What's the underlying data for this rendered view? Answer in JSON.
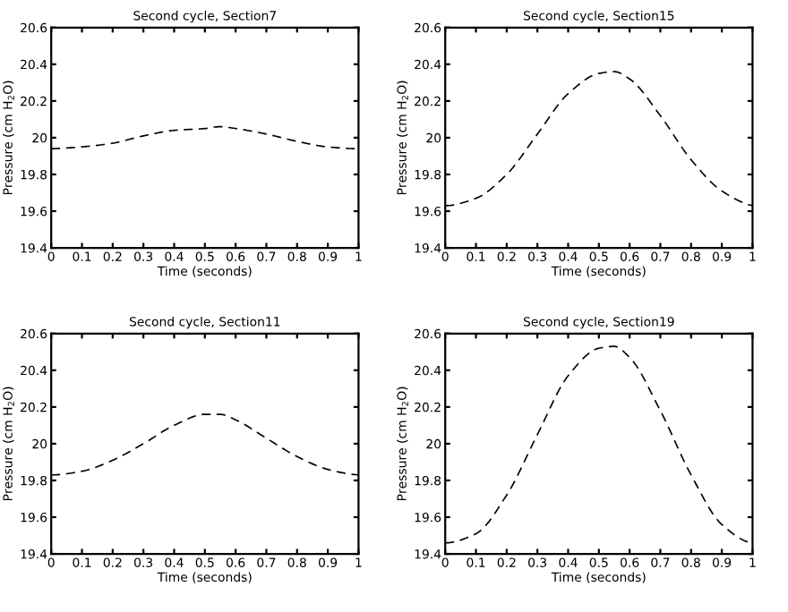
{
  "chart_data": [
    {
      "type": "line",
      "title": "Second cycle, Section7",
      "xlabel": "Time (seconds)",
      "ylabel": "Pressure (cm H$_{2}$O)",
      "x": [
        0,
        0.1,
        0.2,
        0.3,
        0.4,
        0.5,
        0.55,
        0.6,
        0.7,
        0.8,
        0.9,
        1
      ],
      "series": [
        {
          "color": "#000000",
          "values": [
            19.94,
            19.95,
            19.97,
            20.01,
            20.04,
            20.05,
            20.06,
            20.05,
            20.02,
            19.98,
            19.95,
            19.94
          ]
        }
      ],
      "xlim": [
        0,
        1
      ],
      "ylim": [
        19.4,
        20.6
      ],
      "xticks": [
        0,
        0.1,
        0.2,
        0.3,
        0.4,
        0.5,
        0.6,
        0.7,
        0.8,
        0.9,
        1
      ],
      "yticks": [
        19.4,
        19.6,
        19.8,
        20,
        20.2,
        20.4,
        20.6
      ],
      "line_style": "dashed",
      "marker": "none",
      "grid": false
    },
    {
      "type": "line",
      "title": "Second cycle, Section15",
      "xlabel": "Time (seconds)",
      "ylabel": "Pressure (cm H$_{2}$O)",
      "x": [
        0,
        0.1,
        0.2,
        0.3,
        0.4,
        0.5,
        0.55,
        0.6,
        0.7,
        0.8,
        0.9,
        1
      ],
      "series": [
        {
          "color": "#000000",
          "values": [
            19.63,
            19.67,
            19.8,
            20.02,
            20.24,
            20.35,
            20.36,
            20.32,
            20.12,
            19.88,
            19.71,
            19.63
          ]
        }
      ],
      "xlim": [
        0,
        1
      ],
      "ylim": [
        19.4,
        20.6
      ],
      "xticks": [
        0,
        0.1,
        0.2,
        0.3,
        0.4,
        0.5,
        0.6,
        0.7,
        0.8,
        0.9,
        1
      ],
      "yticks": [
        19.4,
        19.6,
        19.8,
        20,
        20.2,
        20.4,
        20.6
      ],
      "line_style": "dashed",
      "marker": "none",
      "grid": false
    },
    {
      "type": "line",
      "title": "Second cycle, Section11",
      "xlabel": "Time (seconds)",
      "ylabel": "Pressure (cm H$_{2}$O)",
      "x": [
        0,
        0.1,
        0.2,
        0.3,
        0.4,
        0.5,
        0.55,
        0.6,
        0.7,
        0.8,
        0.9,
        1
      ],
      "series": [
        {
          "color": "#000000",
          "values": [
            19.83,
            19.85,
            19.91,
            20.0,
            20.1,
            20.16,
            20.16,
            20.13,
            20.03,
            19.93,
            19.86,
            19.83
          ]
        }
      ],
      "xlim": [
        0,
        1
      ],
      "ylim": [
        19.4,
        20.6
      ],
      "xticks": [
        0,
        0.1,
        0.2,
        0.3,
        0.4,
        0.5,
        0.6,
        0.7,
        0.8,
        0.9,
        1
      ],
      "yticks": [
        19.4,
        19.6,
        19.8,
        20,
        20.2,
        20.4,
        20.6
      ],
      "line_style": "dashed",
      "marker": "none",
      "grid": false
    },
    {
      "type": "line",
      "title": "Second cycle, Section19",
      "xlabel": "Time (seconds)",
      "ylabel": "Pressure (cm H$_{2}$O)",
      "x": [
        0,
        0.1,
        0.2,
        0.3,
        0.4,
        0.5,
        0.55,
        0.6,
        0.7,
        0.8,
        0.9,
        1
      ],
      "series": [
        {
          "color": "#000000",
          "values": [
            19.46,
            19.51,
            19.72,
            20.05,
            20.37,
            20.52,
            20.53,
            20.47,
            20.18,
            19.83,
            19.56,
            19.46
          ]
        }
      ],
      "xlim": [
        0,
        1
      ],
      "ylim": [
        19.4,
        20.6
      ],
      "xticks": [
        0,
        0.1,
        0.2,
        0.3,
        0.4,
        0.5,
        0.6,
        0.7,
        0.8,
        0.9,
        1
      ],
      "yticks": [
        19.4,
        19.6,
        19.8,
        20,
        20.2,
        20.4,
        20.6
      ],
      "line_style": "dashed",
      "marker": "none",
      "grid": false
    }
  ]
}
